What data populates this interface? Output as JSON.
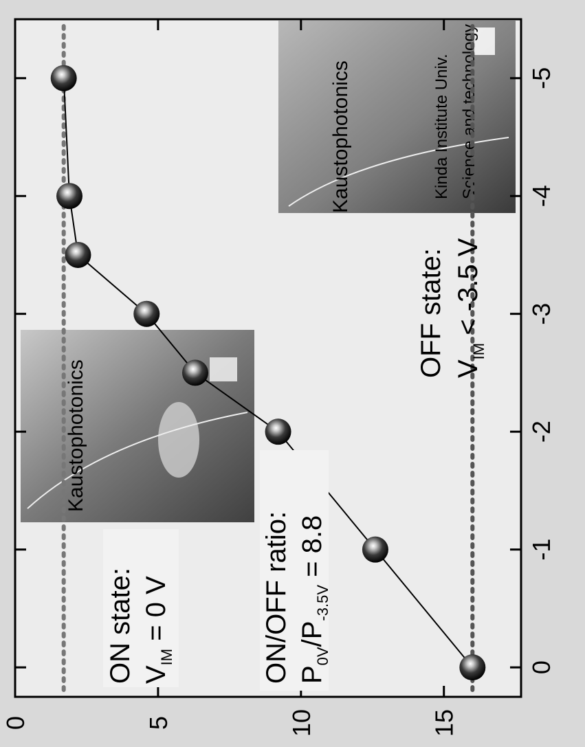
{
  "chart_data": {
    "type": "line",
    "orientation": "rotated-90-clockwise",
    "x": [
      -5,
      -4,
      -3.5,
      -3,
      -2.5,
      -2,
      -1,
      0
    ],
    "series": [
      {
        "values": [
          1.7,
          1.9,
          2.2,
          4.6,
          6.3,
          9.2,
          12.6,
          16.0
        ],
        "color": "#000000"
      }
    ],
    "reference_lines": [
      {
        "y": 16.0,
        "style": "dotted",
        "color": "#555555"
      },
      {
        "y": 1.7,
        "style": "dotted",
        "color": "#777777"
      }
    ],
    "xticks": [
      "-5",
      "-4",
      "-3",
      "-2",
      "-1",
      "0"
    ],
    "yticks": [
      "0",
      "5",
      "10",
      "15"
    ],
    "xlim": [
      -5.5,
      0.25
    ],
    "ylim": [
      0,
      17.7
    ],
    "xlabel": "",
    "ylabel": "",
    "grid": false,
    "annotations": {
      "on_title": "ON state:",
      "on_value": "V",
      "on_sub": "IM",
      "on_rhs": " = 0 V",
      "ratio_title": "ON/OFF ratio:",
      "ratio_p1": "P",
      "ratio_sub1": "0V",
      "ratio_mid": "/P",
      "ratio_sub2": "-3.5V",
      "ratio_rhs": " = 8.8",
      "off_title": "OFF state:",
      "off_value": "V",
      "off_sub": "IM",
      "off_rhs": " < -3.5 V"
    },
    "insets": [
      {
        "name": "on-state-photo",
        "text": "Kaustophotonics"
      },
      {
        "name": "off-state-photo",
        "text": "Kaustophotonics",
        "text2": "Kinda Institute Univ.",
        "text3": "Science and technology"
      }
    ]
  }
}
